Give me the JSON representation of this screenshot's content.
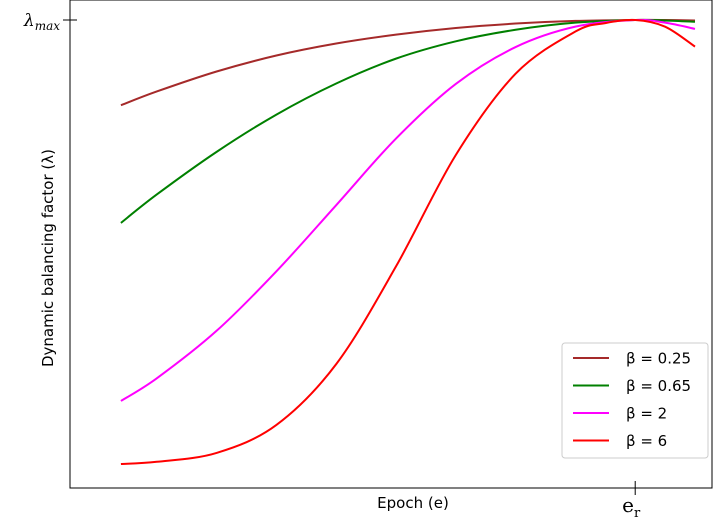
{
  "chart_data": {
    "type": "line",
    "title": "",
    "xlabel": "Epoch (e)",
    "ylabel": "Dynamic balancing factor (λ)",
    "x_ticks": [
      {
        "label": "e_r",
        "text_main": "e",
        "text_sub": "r",
        "x": 0.9
      }
    ],
    "y_ticks": [
      {
        "label": "λ_max",
        "text_main": "λ",
        "text_sub": "max",
        "y": 1.0
      }
    ],
    "xlim": [
      0,
      1
    ],
    "ylim": [
      0,
      1.0
    ],
    "grid": false,
    "legend_position": "bottom-right",
    "series": [
      {
        "name": "β = 0.25",
        "color": "#a52a2a",
        "x": [
          0.04,
          0.1,
          0.2,
          0.3,
          0.4,
          0.5,
          0.6,
          0.7,
          0.8,
          0.9,
          0.95,
          1.0
        ],
        "y": [
          0.808,
          0.839,
          0.884,
          0.92,
          0.947,
          0.967,
          0.982,
          0.992,
          0.998,
          1.0,
          1.0,
          0.999
        ]
      },
      {
        "name": "β = 0.65",
        "color": "#008000",
        "x": [
          0.04,
          0.1,
          0.2,
          0.3,
          0.4,
          0.5,
          0.6,
          0.7,
          0.8,
          0.9,
          0.95,
          1.0
        ],
        "y": [
          0.543,
          0.607,
          0.703,
          0.787,
          0.857,
          0.913,
          0.952,
          0.978,
          0.994,
          1.0,
          0.999,
          0.996
        ]
      },
      {
        "name": "β = 2",
        "color": "#ff00ff",
        "x": [
          0.04,
          0.1,
          0.2,
          0.3,
          0.4,
          0.5,
          0.6,
          0.7,
          0.8,
          0.9,
          0.95,
          1.0
        ],
        "y": [
          0.142,
          0.193,
          0.3,
          0.434,
          0.583,
          0.733,
          0.856,
          0.939,
          0.985,
          1.0,
          0.994,
          0.98
        ]
      },
      {
        "name": "β = 6",
        "color": "#ff0000",
        "x": [
          0.04,
          0.1,
          0.2,
          0.3,
          0.4,
          0.5,
          0.6,
          0.7,
          0.8,
          0.85,
          0.9,
          0.95,
          1.0
        ],
        "y": [
          0.0,
          0.005,
          0.025,
          0.088,
          0.225,
          0.445,
          0.696,
          0.879,
          0.974,
          0.993,
          1.0,
          0.985,
          0.94
        ]
      }
    ]
  }
}
